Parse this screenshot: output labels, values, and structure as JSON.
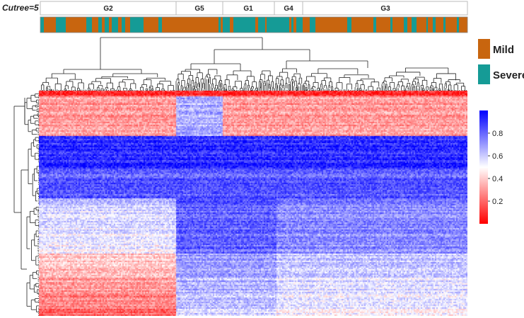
{
  "chart_data": {
    "type": "heatmap",
    "cutree_label": "Cutree=5",
    "clusters": [
      "G2",
      "G5",
      "G1",
      "G4",
      "G3"
    ],
    "legend": {
      "categories": [
        {
          "name": "Mild",
          "color": "#c8650f"
        },
        {
          "name": "Severe",
          "color": "#159b96"
        }
      ]
    },
    "colorbar": {
      "ticks": [
        "0.8",
        "0.6",
        "0.4",
        "0.2"
      ],
      "tick_values": [
        0.8,
        0.6,
        0.4,
        0.2
      ],
      "range": [
        0,
        1
      ],
      "low_color": "#ff0000",
      "mid_color": "#ffffff",
      "high_color": "#0000ff"
    }
  }
}
